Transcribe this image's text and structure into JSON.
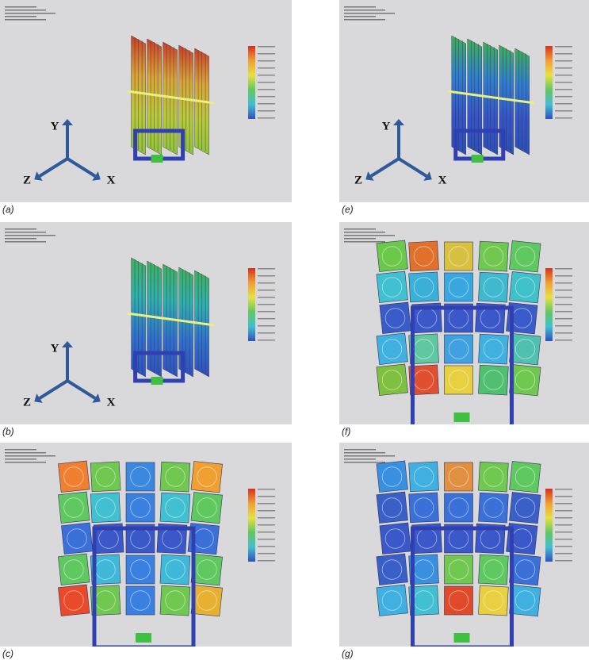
{
  "panels": [
    {
      "label": "(a)",
      "axes": [
        "Y",
        "Z",
        "X"
      ]
    },
    {
      "label": "(e)",
      "axes": [
        "Y",
        "Z",
        "X"
      ]
    },
    {
      "label": "(b)",
      "axes": [
        "Y",
        "Z",
        "X"
      ]
    },
    {
      "label": "(f)"
    },
    {
      "label": "(c)"
    },
    {
      "label": "(g)"
    }
  ]
}
